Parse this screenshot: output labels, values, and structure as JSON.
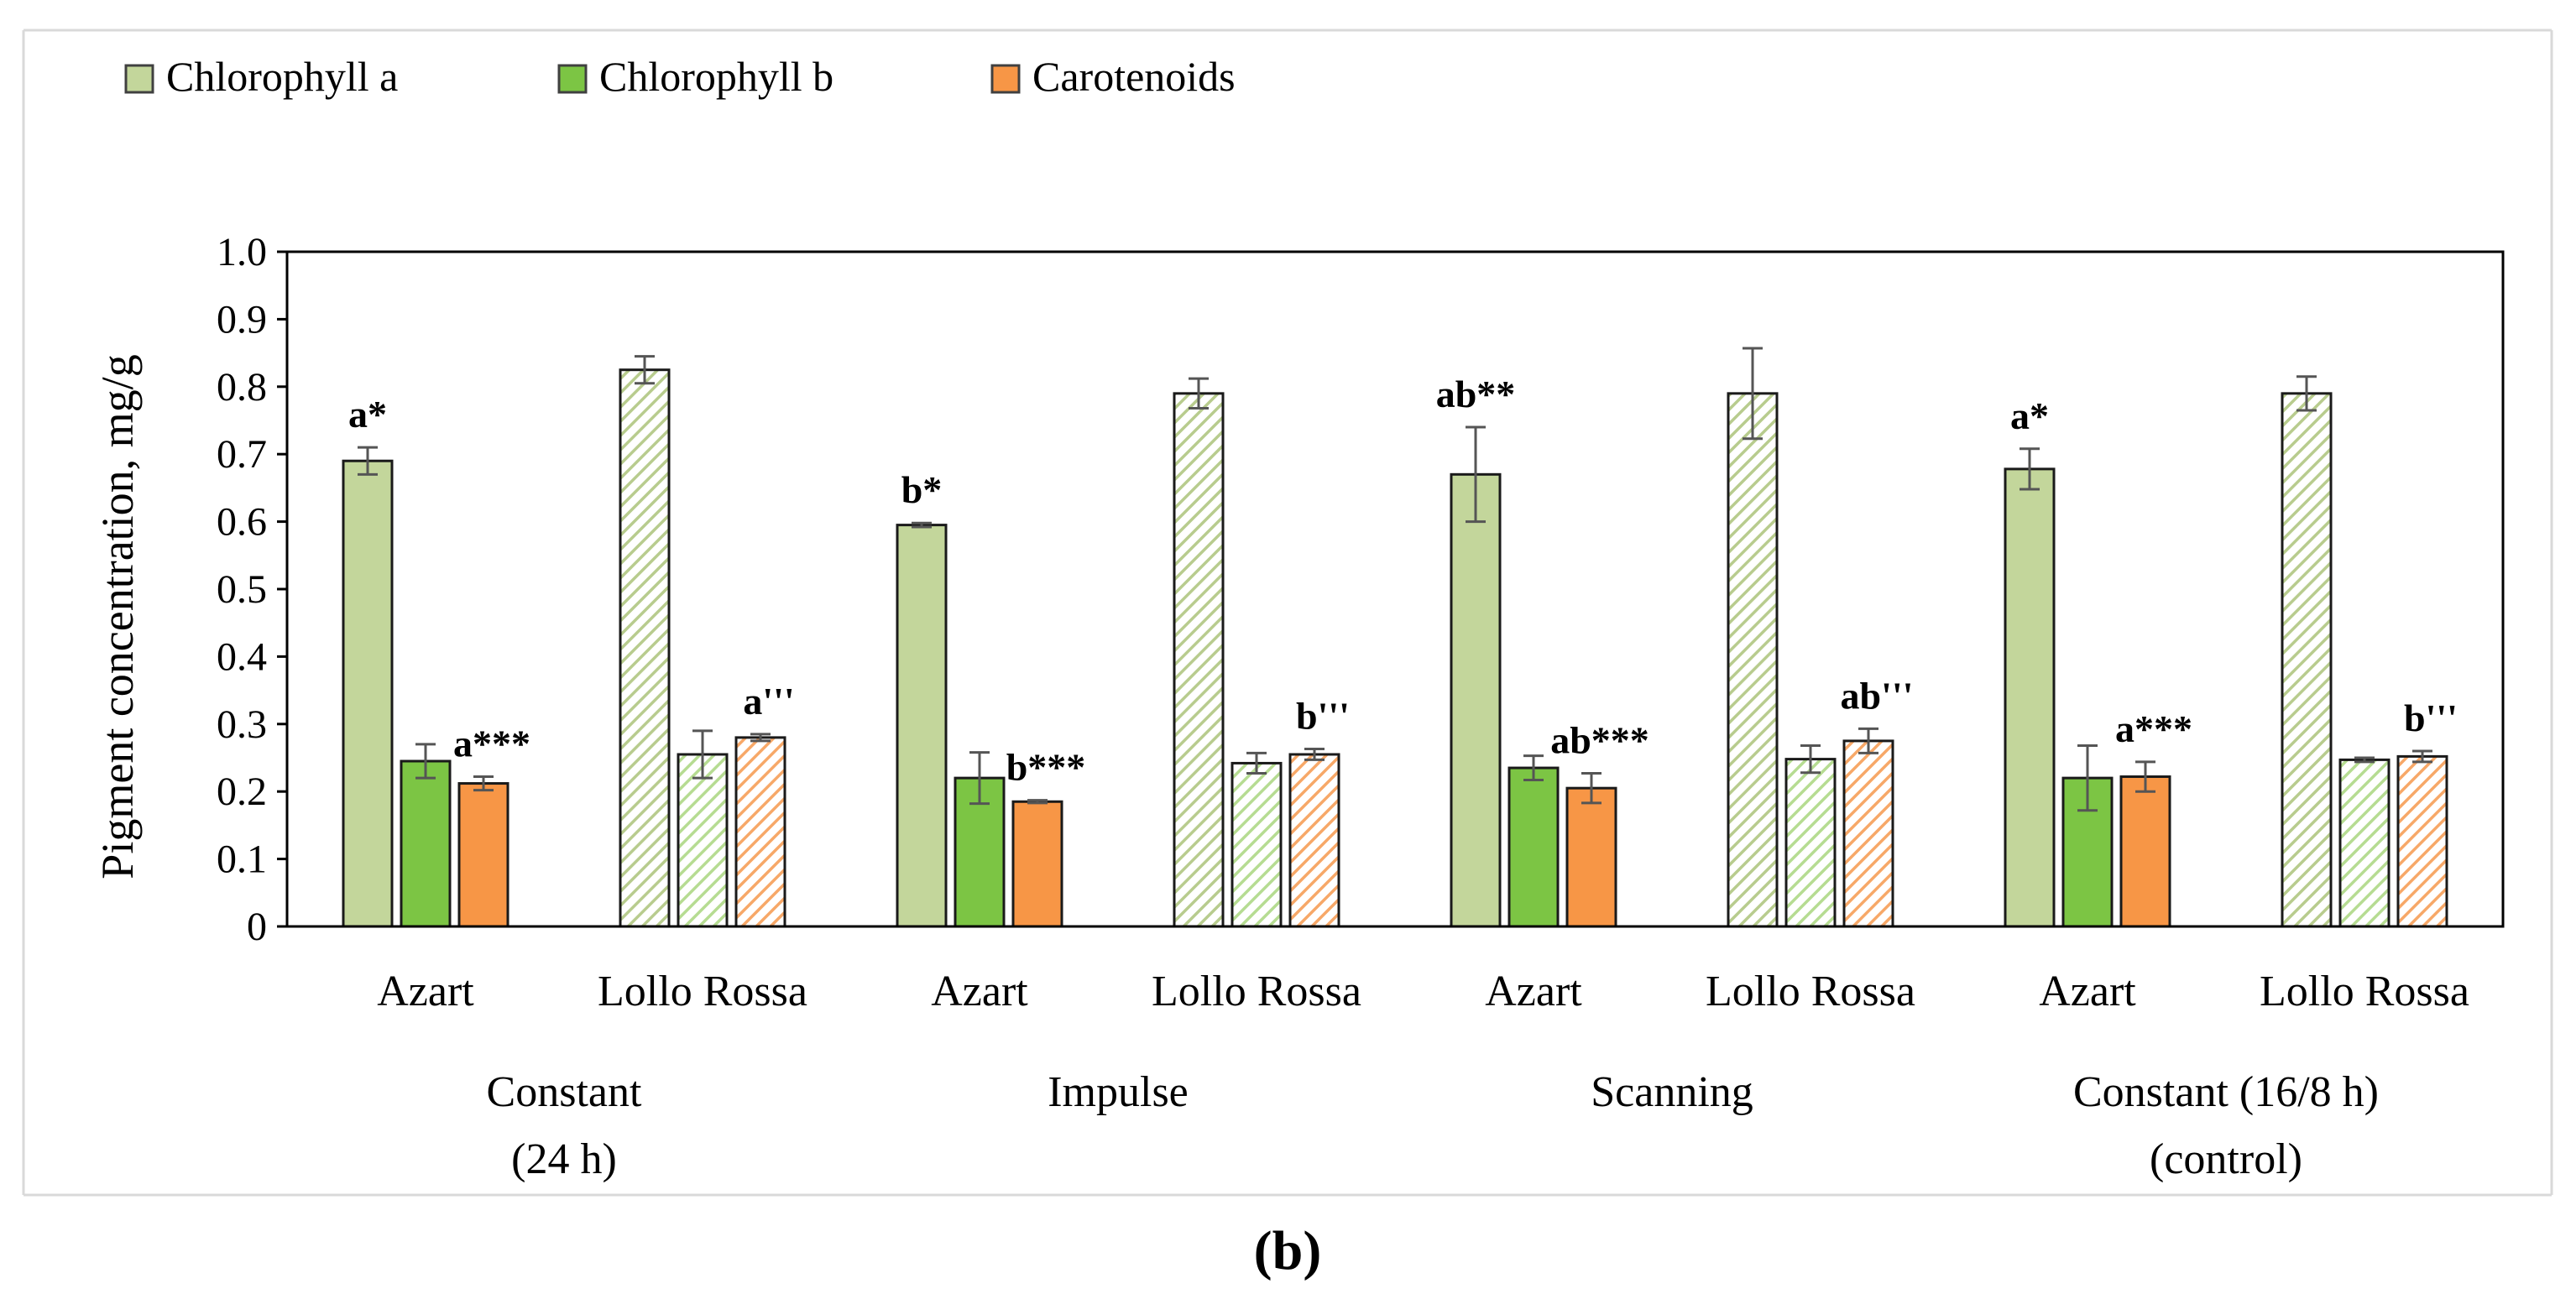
{
  "chart_data": {
    "type": "bar",
    "ylabel": "Pigment concentration, mg/g",
    "ylim": [
      0,
      1.0
    ],
    "ytick_step": 0.1,
    "ytick_labels": [
      "0",
      "0.1",
      "0.2",
      "0.3",
      "0.4",
      "0.5",
      "0.6",
      "0.7",
      "0.8",
      "0.9",
      "1.0"
    ],
    "grid": false,
    "legend_position": "top-left",
    "series": [
      {
        "name": "Chlorophyll a",
        "color": "#c3d69b",
        "hatch_color": "#b8cc8e"
      },
      {
        "name": "Chlorophyll b",
        "color": "#7cc544",
        "hatch_color": "#b6dc92"
      },
      {
        "name": "Carotenoids",
        "color": "#f79646",
        "hatch_color": "#f7a868"
      }
    ],
    "groups": [
      {
        "label_lines": [
          "Constant",
          "(24 h)"
        ],
        "cultivars": [
          {
            "name": "Azart",
            "hatched": false,
            "values": [
              0.69,
              0.245,
              0.212
            ],
            "errors": [
              0.02,
              0.025,
              0.01
            ],
            "annotation": {
              "series": 0,
              "text": "a*"
            },
            "annotation2": {
              "series": 2,
              "text": "a***"
            }
          },
          {
            "name": "Lollo Rossa",
            "hatched": true,
            "values": [
              0.825,
              0.255,
              0.28
            ],
            "errors": [
              0.02,
              0.035,
              0.005
            ],
            "annotation": {
              "series": 2,
              "text": "a'''"
            }
          }
        ]
      },
      {
        "label_lines": [
          "Impulse"
        ],
        "cultivars": [
          {
            "name": "Azart",
            "hatched": false,
            "values": [
              0.595,
              0.22,
              0.185
            ],
            "errors": [
              0.003,
              0.038,
              0.002
            ],
            "annotation": {
              "series": 0,
              "text": "b*"
            },
            "annotation2": {
              "series": 2,
              "text": "b***"
            }
          },
          {
            "name": "Lollo Rossa",
            "hatched": true,
            "values": [
              0.79,
              0.242,
              0.255
            ],
            "errors": [
              0.022,
              0.015,
              0.008
            ],
            "annotation": {
              "series": 2,
              "text": "b'''"
            }
          }
        ]
      },
      {
        "label_lines": [
          "Scanning"
        ],
        "cultivars": [
          {
            "name": "Azart",
            "hatched": false,
            "values": [
              0.67,
              0.235,
              0.205
            ],
            "errors": [
              0.07,
              0.018,
              0.022
            ],
            "annotation": {
              "series": 0,
              "text": "ab**"
            },
            "annotation2": {
              "series": 2,
              "text": "ab***"
            }
          },
          {
            "name": "Lollo Rossa",
            "hatched": true,
            "values": [
              0.79,
              0.248,
              0.275
            ],
            "errors": [
              0.067,
              0.02,
              0.018
            ],
            "annotation": {
              "series": 2,
              "text": "ab'''"
            }
          }
        ]
      },
      {
        "label_lines": [
          "Constant (16/8 h)",
          "(control)"
        ],
        "cultivars": [
          {
            "name": "Azart",
            "hatched": false,
            "values": [
              0.678,
              0.22,
              0.222
            ],
            "errors": [
              0.03,
              0.048,
              0.022
            ],
            "annotation": {
              "series": 0,
              "text": "a*"
            },
            "annotation2": {
              "series": 2,
              "text": "a***"
            }
          },
          {
            "name": "Lollo Rossa",
            "hatched": true,
            "values": [
              0.79,
              0.247,
              0.252
            ],
            "errors": [
              0.025,
              0.003,
              0.008
            ],
            "annotation": {
              "series": 2,
              "text": "b'''"
            }
          }
        ]
      }
    ]
  },
  "panel_label": "(b)"
}
